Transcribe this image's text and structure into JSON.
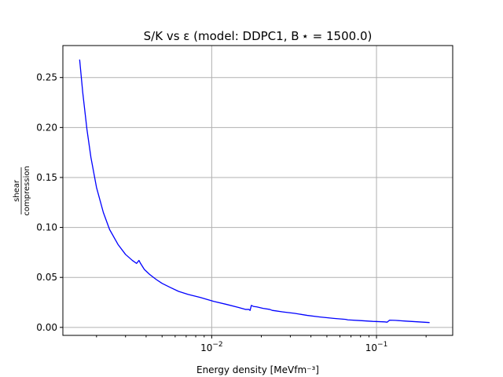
{
  "chart_data": {
    "type": "line",
    "title": "S/K vs ε (model: DDPC1, B ⋆ = 1500.0)",
    "xlabel": "Energy density [MeVfm⁻³]",
    "ylabel": {
      "numerator": "shear",
      "denominator": "compression"
    },
    "xscale": "log",
    "xlim": [
      0.00125,
      0.29
    ],
    "ylim": [
      -0.008,
      0.282
    ],
    "grid": true,
    "x_ticks": [
      {
        "value": 0.01,
        "base": "10",
        "exp": "−2"
      },
      {
        "value": 0.1,
        "base": "10",
        "exp": "−1"
      }
    ],
    "y_ticks": [
      {
        "value": 0.0,
        "label": "0.00"
      },
      {
        "value": 0.05,
        "label": "0.05"
      },
      {
        "value": 0.1,
        "label": "0.10"
      },
      {
        "value": 0.15,
        "label": "0.15"
      },
      {
        "value": 0.2,
        "label": "0.20"
      },
      {
        "value": 0.25,
        "label": "0.25"
      }
    ],
    "colors": {
      "series": "#0000ff",
      "grid": "#b0b0b0",
      "axes": "#000000"
    },
    "series": [
      {
        "x": [
          0.00158,
          0.00165,
          0.00175,
          0.00185,
          0.002,
          0.0022,
          0.0024,
          0.0027,
          0.003,
          0.0033,
          0.0035,
          0.00362,
          0.0037,
          0.0039,
          0.0042,
          0.0046,
          0.005,
          0.0056,
          0.0063,
          0.0072,
          0.0085,
          0.0103,
          0.0123,
          0.0145,
          0.016,
          0.0168,
          0.0171,
          0.0174,
          0.0179,
          0.0188,
          0.0205,
          0.0225,
          0.0233,
          0.0245,
          0.027,
          0.032,
          0.038,
          0.045,
          0.055,
          0.065,
          0.067,
          0.08,
          0.095,
          0.112,
          0.116,
          0.12,
          0.13,
          0.15,
          0.18,
          0.21
        ],
        "y": [
          0.268,
          0.235,
          0.198,
          0.17,
          0.14,
          0.115,
          0.098,
          0.083,
          0.073,
          0.067,
          0.064,
          0.067,
          0.064,
          0.058,
          0.053,
          0.048,
          0.044,
          0.04,
          0.036,
          0.033,
          0.03,
          0.026,
          0.023,
          0.02,
          0.018,
          0.018,
          0.017,
          0.022,
          0.021,
          0.0205,
          0.019,
          0.018,
          0.017,
          0.0165,
          0.0155,
          0.014,
          0.012,
          0.0105,
          0.009,
          0.008,
          0.0075,
          0.0068,
          0.006,
          0.0055,
          0.0052,
          0.0072,
          0.007,
          0.0063,
          0.0055,
          0.0048
        ]
      }
    ]
  }
}
